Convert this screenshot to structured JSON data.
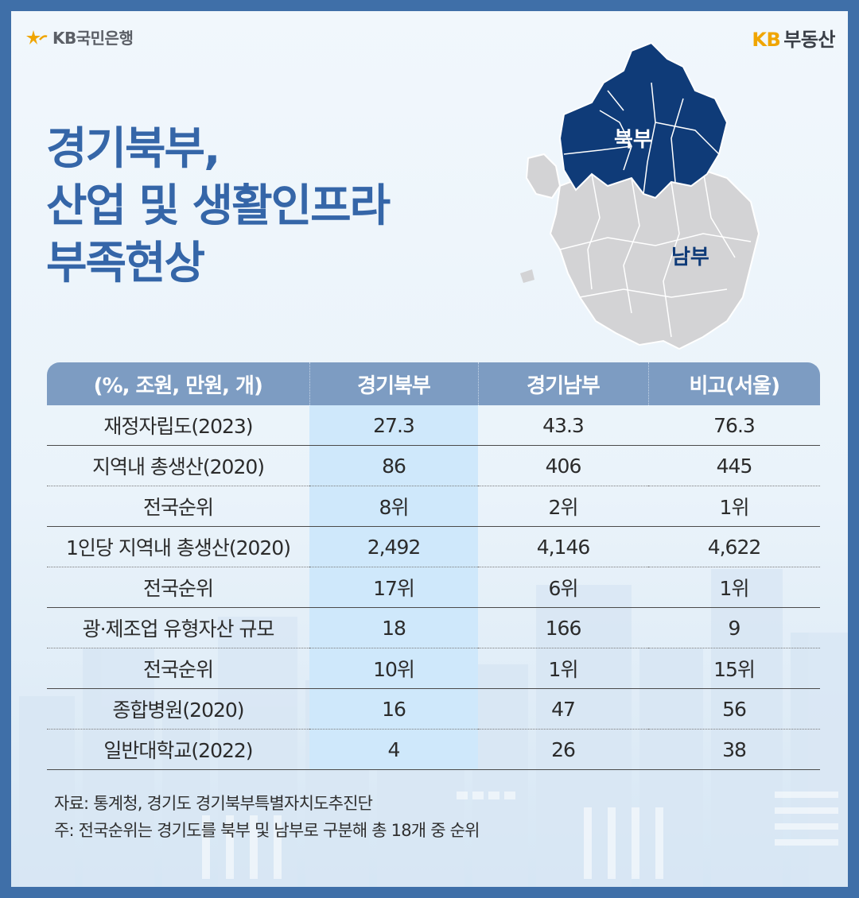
{
  "brand": {
    "bank": "KB국민은행",
    "realestate_kb": "KB",
    "realestate_name": "부동산"
  },
  "title": {
    "line1": "경기북부,",
    "line2": "산업 및 생활인프라",
    "line3": "부족현상"
  },
  "map": {
    "north_label": "북부",
    "south_label": "남부",
    "north_color": "#0f3b78",
    "south_color": "#d3d3d5"
  },
  "table": {
    "headers": [
      "(%, 조원, 만원, 개)",
      "경기북부",
      "경기남부",
      "비고(서울)"
    ],
    "rows": [
      [
        "재정자립도(2023)",
        "27.3",
        "43.3",
        "76.3"
      ],
      [
        "지역내 총생산(2020)",
        "86",
        "406",
        "445"
      ],
      [
        "전국순위",
        "8위",
        "2위",
        "1위"
      ],
      [
        "1인당 지역내 총생산(2020)",
        "2,492",
        "4,146",
        "4,622"
      ],
      [
        "전국순위",
        "17위",
        "6위",
        "1위"
      ],
      [
        "광·제조업 유형자산 규모",
        "18",
        "166",
        "9"
      ],
      [
        "전국순위",
        "10위",
        "1위",
        "15위"
      ],
      [
        "종합병원(2020)",
        "16",
        "47",
        "56"
      ],
      [
        "일반대학교(2022)",
        "4",
        "26",
        "38"
      ]
    ]
  },
  "notes": {
    "source": "자료: 통계청, 경기도 경기북부특별자치도추진단",
    "note": "주: 전국순위는 경기도를 북부 및 남부로 구분해 총 18개 중 순위"
  },
  "colors": {
    "title": "#3566a8",
    "header_bg": "#7d9cc2",
    "highlight": "#cfe8fb",
    "frame": "#3f6fa8"
  }
}
